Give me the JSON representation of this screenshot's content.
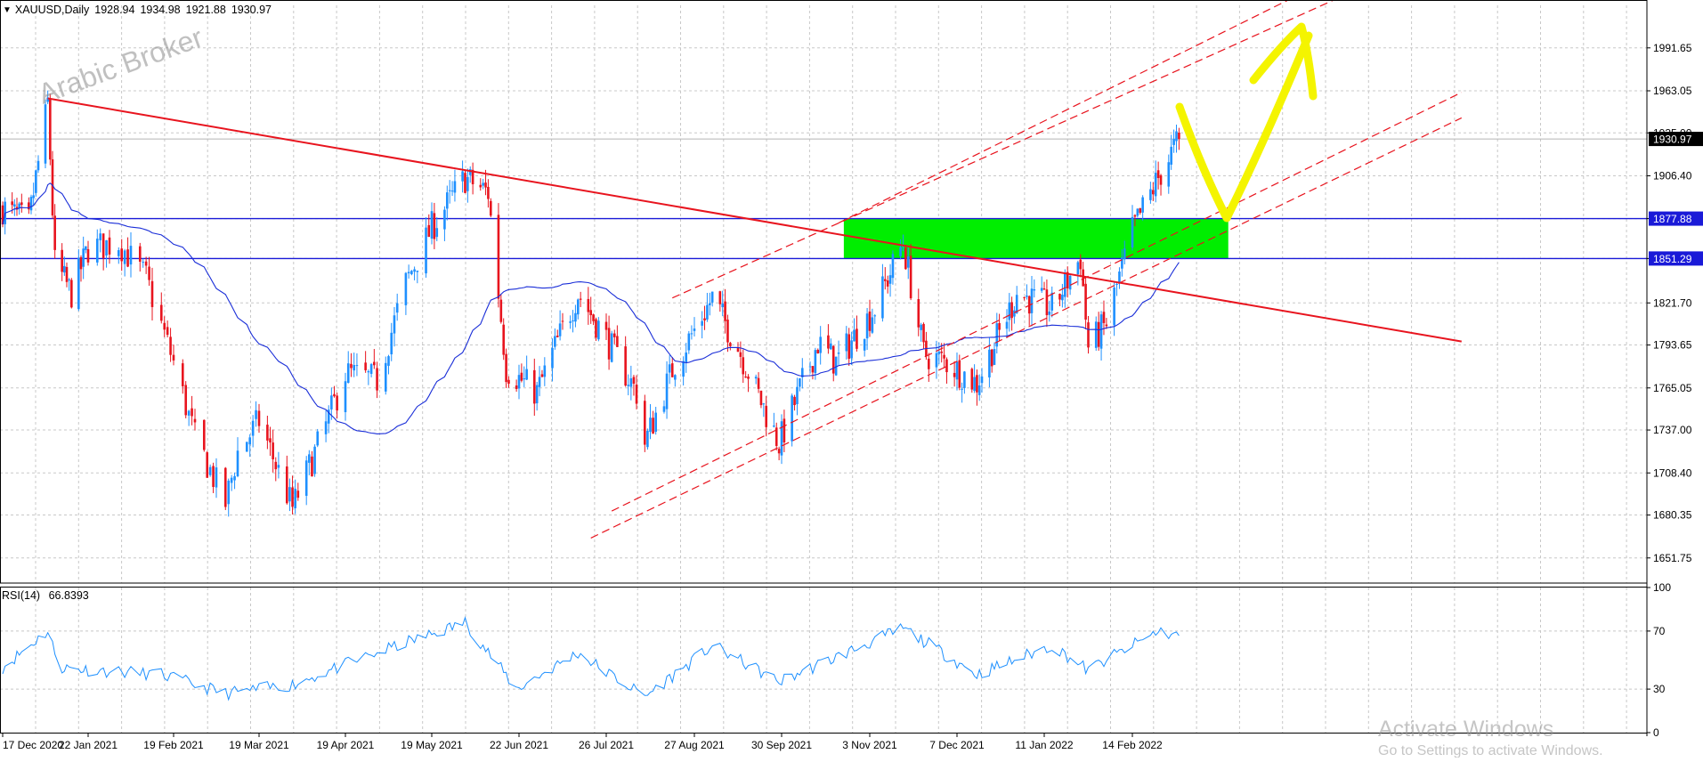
{
  "header": {
    "symbol": "XAUUSD,Daily",
    "open": "1928.94",
    "high": "1934.98",
    "low": "1921.88",
    "close": "1930.97"
  },
  "watermark_broker": "Arabic Broker",
  "rsi_panel": {
    "label": "RSI(14)",
    "value": "66.8393"
  },
  "os_watermark": {
    "title": "Activate Windows",
    "subtitle": "Go to Settings to activate Windows."
  },
  "colors": {
    "bull_candle": "#1e90ff",
    "bear_candle": "#e8141e",
    "trendline": "#e8141e",
    "ma_line": "#1a2ed8",
    "horizontal_levels": "#1a1ad8",
    "zone_fill": "#00ee00",
    "projection_arrow": "#f4f400",
    "rsi_line": "#1e90ff",
    "grid": "#c8c8c8"
  },
  "chart_data": [
    {
      "type": "candlestick",
      "symbol": "XAUUSD",
      "timeframe": "Daily",
      "ylim": [
        1635,
        2020
      ],
      "price_ticks": [
        "1991.65",
        "1963.05",
        "1935.00",
        "1906.40",
        "1877.88",
        "1851.29",
        "1821.70",
        "1793.65",
        "1765.05",
        "1737.00",
        "1708.40",
        "1680.35",
        "1651.75"
      ],
      "date_ticks": [
        "17 Dec 2020",
        "22 Jan 2021",
        "19 Feb 2021",
        "19 Mar 2021",
        "19 Apr 2021",
        "19 May 2021",
        "22 Jun 2021",
        "26 Jul 2021",
        "27 Aug 2021",
        "30 Sep 2021",
        "3 Nov 2021",
        "7 Dec 2021",
        "11 Jan 2022",
        "14 Feb 2022"
      ],
      "current_price": 1930.97,
      "horizontal_levels": [
        1877.88,
        1851.29
      ],
      "grid": true,
      "anchors": [
        {
          "date": "2020-12-17",
          "close": 1885
        },
        {
          "date": "2020-12-28",
          "close": 1875
        },
        {
          "date": "2021-01-05",
          "close": 1955
        },
        {
          "date": "2021-01-08",
          "close": 1848
        },
        {
          "date": "2021-01-15",
          "close": 1828
        },
        {
          "date": "2021-01-22",
          "close": 1858
        },
        {
          "date": "2021-02-01",
          "close": 1862
        },
        {
          "date": "2021-02-10",
          "close": 1838
        },
        {
          "date": "2021-02-19",
          "close": 1782
        },
        {
          "date": "2021-02-26",
          "close": 1732
        },
        {
          "date": "2021-03-08",
          "close": 1688
        },
        {
          "date": "2021-03-12",
          "close": 1722
        },
        {
          "date": "2021-03-19",
          "close": 1743
        },
        {
          "date": "2021-03-31",
          "close": 1685
        },
        {
          "date": "2021-04-12",
          "close": 1740
        },
        {
          "date": "2021-04-19",
          "close": 1775
        },
        {
          "date": "2021-04-30",
          "close": 1770
        },
        {
          "date": "2021-05-10",
          "close": 1835
        },
        {
          "date": "2021-05-19",
          "close": 1872
        },
        {
          "date": "2021-06-01",
          "close": 1905
        },
        {
          "date": "2021-06-10",
          "close": 1895
        },
        {
          "date": "2021-06-17",
          "close": 1778
        },
        {
          "date": "2021-06-29",
          "close": 1762
        },
        {
          "date": "2021-07-06",
          "close": 1792
        },
        {
          "date": "2021-07-15",
          "close": 1828
        },
        {
          "date": "2021-07-26",
          "close": 1798
        },
        {
          "date": "2021-08-06",
          "close": 1762
        },
        {
          "date": "2021-08-09",
          "close": 1728
        },
        {
          "date": "2021-08-20",
          "close": 1782
        },
        {
          "date": "2021-09-03",
          "close": 1825
        },
        {
          "date": "2021-09-13",
          "close": 1792
        },
        {
          "date": "2021-09-29",
          "close": 1728
        },
        {
          "date": "2021-10-14",
          "close": 1795
        },
        {
          "date": "2021-10-21",
          "close": 1782
        },
        {
          "date": "2021-11-05",
          "close": 1818
        },
        {
          "date": "2021-11-16",
          "close": 1862
        },
        {
          "date": "2021-11-24",
          "close": 1788
        },
        {
          "date": "2021-12-03",
          "close": 1782
        },
        {
          "date": "2021-12-15",
          "close": 1768
        },
        {
          "date": "2021-12-31",
          "close": 1828
        },
        {
          "date": "2022-01-14",
          "close": 1818
        },
        {
          "date": "2022-01-25",
          "close": 1852
        },
        {
          "date": "2022-01-28",
          "close": 1792
        },
        {
          "date": "2022-02-04",
          "close": 1808
        },
        {
          "date": "2022-02-14",
          "close": 1870
        },
        {
          "date": "2022-02-24",
          "close": 1905
        },
        {
          "date": "2022-03-04",
          "close": 1930.97
        }
      ],
      "trendlines": [
        {
          "kind": "descending",
          "from": {
            "date": "2021-01-05",
            "price": 1958
          },
          "to": {
            "date": "2022-06-21",
            "price": 1796
          }
        },
        {
          "kind": "channel-upper",
          "from": {
            "date": "2021-10-22",
            "price": 1875
          },
          "to": {
            "date": "2022-05-09",
            "price": 2044
          }
        },
        {
          "kind": "channel-upper",
          "from": {
            "date": "2021-08-19",
            "price": 1825
          },
          "to": {
            "date": "2022-05-11",
            "price": 2030
          }
        },
        {
          "kind": "channel-lower",
          "from": {
            "date": "2021-07-28",
            "price": 1683
          },
          "to": {
            "date": "2022-06-21",
            "price": 1962
          }
        },
        {
          "kind": "channel-lower",
          "from": {
            "date": "2021-07-20",
            "price": 1665
          },
          "to": {
            "date": "2022-06-21",
            "price": 1945
          }
        }
      ],
      "zone": {
        "from": "2021-10-24",
        "to": "2022-03-23",
        "low": 1851.29,
        "high": 1877.88
      }
    },
    {
      "type": "line",
      "title": "RSI(14)",
      "ylim": [
        0,
        100
      ],
      "y_ticks": [
        "100",
        "70",
        "30",
        "0"
      ],
      "last_value": 66.8393,
      "anchors": [
        {
          "date": "2020-12-17",
          "value": 45
        },
        {
          "date": "2021-01-05",
          "value": 70
        },
        {
          "date": "2021-01-10",
          "value": 45
        },
        {
          "date": "2021-02-15",
          "value": 40
        },
        {
          "date": "2021-03-08",
          "value": 27
        },
        {
          "date": "2021-03-31",
          "value": 33
        },
        {
          "date": "2021-05-10",
          "value": 62
        },
        {
          "date": "2021-06-01",
          "value": 76
        },
        {
          "date": "2021-06-21",
          "value": 30
        },
        {
          "date": "2021-07-15",
          "value": 55
        },
        {
          "date": "2021-08-09",
          "value": 25
        },
        {
          "date": "2021-09-03",
          "value": 60
        },
        {
          "date": "2021-09-29",
          "value": 35
        },
        {
          "date": "2021-11-16",
          "value": 72
        },
        {
          "date": "2021-12-15",
          "value": 40
        },
        {
          "date": "2022-01-14",
          "value": 60
        },
        {
          "date": "2022-01-28",
          "value": 43
        },
        {
          "date": "2022-02-24",
          "value": 70
        },
        {
          "date": "2022-03-04",
          "value": 66.8393
        }
      ]
    }
  ]
}
